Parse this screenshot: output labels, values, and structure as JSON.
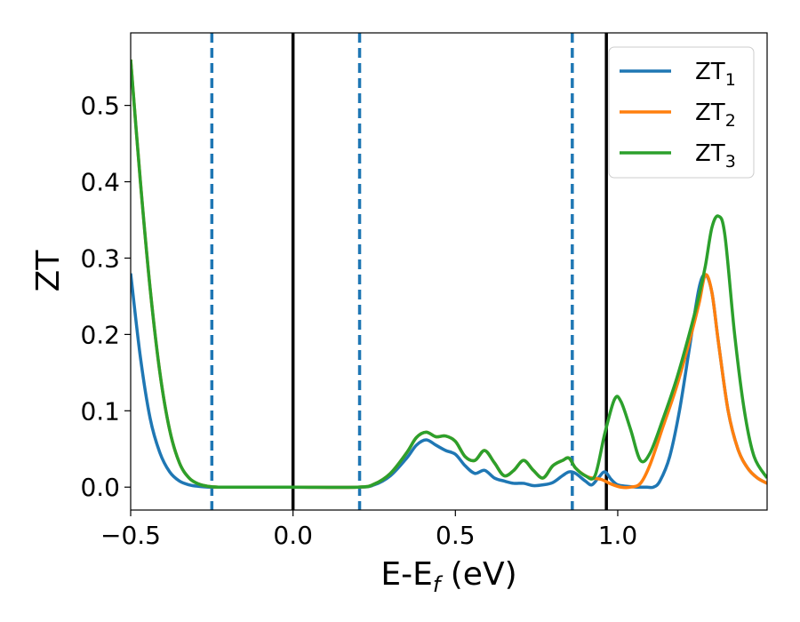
{
  "chart_data": {
    "type": "line",
    "xlabel": "E-E",
    "xlabel_sub": "f",
    "xlabel_unit": " (eV)",
    "ylabel": "ZT",
    "xlim": [
      -0.5,
      1.46
    ],
    "ylim": [
      -0.03,
      0.595
    ],
    "xticks": [
      -0.5,
      0.0,
      0.5,
      1.0
    ],
    "xtick_labels": [
      "−0.5",
      "0.0",
      "0.5",
      "1.0"
    ],
    "yticks": [
      0.0,
      0.1,
      0.2,
      0.3,
      0.4,
      0.5
    ],
    "ytick_labels": [
      "0.0",
      "0.1",
      "0.2",
      "0.3",
      "0.4",
      "0.5"
    ],
    "grid": false,
    "legend_position": "top-right",
    "vlines": [
      {
        "x": -0.25,
        "style": "dashed",
        "color": "#1f77b4"
      },
      {
        "x": 0.0,
        "style": "solid",
        "color": "#000000"
      },
      {
        "x": 0.205,
        "style": "dashed",
        "color": "#1f77b4"
      },
      {
        "x": 0.86,
        "style": "dashed",
        "color": "#1f77b4"
      },
      {
        "x": 0.965,
        "style": "solid",
        "color": "#000000"
      }
    ],
    "series": [
      {
        "name": "ZT",
        "sub": "1",
        "color": "#1f77b4",
        "x": [
          -0.5,
          -0.47,
          -0.44,
          -0.41,
          -0.38,
          -0.35,
          -0.32,
          -0.29,
          -0.26,
          -0.23,
          -0.2,
          0.0,
          0.2,
          0.25,
          0.3,
          0.35,
          0.38,
          0.41,
          0.44,
          0.47,
          0.5,
          0.53,
          0.56,
          0.59,
          0.62,
          0.65,
          0.68,
          0.71,
          0.74,
          0.77,
          0.8,
          0.83,
          0.85,
          0.87,
          0.9,
          0.92,
          0.94,
          0.96,
          0.98,
          1.0,
          1.03,
          1.06,
          1.09,
          1.11,
          1.13,
          1.16,
          1.19,
          1.22,
          1.25,
          1.27,
          1.29,
          1.31,
          1.34,
          1.37,
          1.4,
          1.43,
          1.46
        ],
        "y": [
          0.28,
          0.17,
          0.09,
          0.045,
          0.02,
          0.008,
          0.003,
          0.001,
          0.0,
          0.0,
          0.0,
          0.0,
          0.0,
          0.003,
          0.015,
          0.038,
          0.055,
          0.062,
          0.055,
          0.048,
          0.043,
          0.028,
          0.018,
          0.022,
          0.012,
          0.008,
          0.005,
          0.005,
          0.002,
          0.003,
          0.006,
          0.015,
          0.02,
          0.018,
          0.008,
          0.003,
          0.012,
          0.02,
          0.01,
          0.003,
          0.001,
          0.0,
          0.0,
          0.0,
          0.008,
          0.04,
          0.1,
          0.18,
          0.26,
          0.278,
          0.255,
          0.19,
          0.1,
          0.05,
          0.025,
          0.012,
          0.005
        ]
      },
      {
        "name": "ZT",
        "sub": "2",
        "color": "#ff7f0e",
        "x": [
          -0.5,
          -0.47,
          -0.44,
          -0.41,
          -0.38,
          -0.35,
          -0.32,
          -0.29,
          -0.26,
          -0.23,
          -0.2,
          0.0,
          0.2,
          0.25,
          0.3,
          0.35,
          0.38,
          0.41,
          0.44,
          0.47,
          0.5,
          0.53,
          0.56,
          0.59,
          0.62,
          0.65,
          0.68,
          0.71,
          0.74,
          0.77,
          0.8,
          0.83,
          0.85,
          0.87,
          0.9,
          0.92,
          0.95,
          0.98,
          1.01,
          1.04,
          1.07,
          1.1,
          1.14,
          1.18,
          1.22,
          1.25,
          1.27,
          1.29,
          1.31,
          1.34,
          1.37,
          1.4,
          1.43,
          1.46
        ],
        "y": [
          0.56,
          0.4,
          0.26,
          0.15,
          0.075,
          0.032,
          0.012,
          0.004,
          0.001,
          0.0,
          0.0,
          0.0,
          0.0,
          0.004,
          0.018,
          0.045,
          0.065,
          0.072,
          0.066,
          0.067,
          0.06,
          0.04,
          0.035,
          0.048,
          0.032,
          0.015,
          0.022,
          0.035,
          0.022,
          0.012,
          0.028,
          0.035,
          0.038,
          0.025,
          0.015,
          0.012,
          0.01,
          0.004,
          0.0,
          0.0,
          0.005,
          0.03,
          0.08,
          0.13,
          0.19,
          0.24,
          0.278,
          0.255,
          0.19,
          0.1,
          0.05,
          0.025,
          0.012,
          0.005
        ]
      },
      {
        "name": "ZT",
        "sub": "3",
        "color": "#2ca02c",
        "x": [
          -0.5,
          -0.47,
          -0.44,
          -0.41,
          -0.38,
          -0.35,
          -0.32,
          -0.29,
          -0.26,
          -0.23,
          -0.2,
          0.0,
          0.2,
          0.25,
          0.3,
          0.35,
          0.38,
          0.41,
          0.44,
          0.47,
          0.5,
          0.53,
          0.56,
          0.59,
          0.62,
          0.65,
          0.68,
          0.71,
          0.74,
          0.77,
          0.8,
          0.83,
          0.85,
          0.87,
          0.9,
          0.93,
          0.96,
          0.99,
          1.01,
          1.04,
          1.07,
          1.1,
          1.14,
          1.18,
          1.22,
          1.25,
          1.27,
          1.29,
          1.31,
          1.33,
          1.36,
          1.39,
          1.42,
          1.46
        ],
        "y": [
          0.56,
          0.4,
          0.26,
          0.15,
          0.075,
          0.032,
          0.012,
          0.004,
          0.001,
          0.0,
          0.0,
          0.0,
          0.0,
          0.004,
          0.018,
          0.045,
          0.065,
          0.072,
          0.066,
          0.067,
          0.06,
          0.04,
          0.035,
          0.048,
          0.032,
          0.015,
          0.022,
          0.035,
          0.022,
          0.012,
          0.028,
          0.035,
          0.038,
          0.025,
          0.015,
          0.015,
          0.07,
          0.115,
          0.112,
          0.075,
          0.035,
          0.045,
          0.09,
          0.14,
          0.2,
          0.25,
          0.29,
          0.34,
          0.355,
          0.33,
          0.2,
          0.1,
          0.04,
          0.012
        ]
      }
    ]
  }
}
